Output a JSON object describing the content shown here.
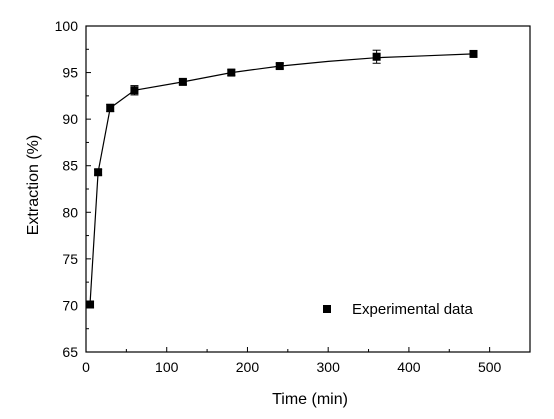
{
  "chart_data": {
    "type": "scatter",
    "title": "",
    "xlabel": "Time (min)",
    "ylabel": "Extraction (%)",
    "xlim": [
      0,
      550
    ],
    "ylim": [
      65,
      100
    ],
    "xticks": [
      0,
      100,
      200,
      300,
      400,
      500
    ],
    "yticks": [
      65,
      70,
      75,
      80,
      85,
      90,
      95,
      100
    ],
    "legend": {
      "placement": "bottom-right",
      "entries": [
        "Experimental data"
      ]
    },
    "grid": false,
    "series": [
      {
        "name": "Experimental data",
        "marker": "square",
        "color": "#000000",
        "x": [
          5,
          15,
          30,
          60,
          120,
          180,
          240,
          360,
          480
        ],
        "y": [
          70.1,
          84.3,
          91.2,
          93.1,
          94.0,
          95.0,
          95.7,
          96.7,
          97.0
        ],
        "error": [
          0.3,
          0.3,
          0.4,
          0.5,
          0.3,
          0.3,
          0.3,
          0.7,
          0.3
        ]
      }
    ],
    "fit_curve": {
      "color": "#000000",
      "x": [
        5,
        15,
        30,
        60,
        120,
        180,
        240,
        300,
        360,
        420,
        480
      ],
      "y": [
        70.1,
        84.3,
        91.2,
        93.1,
        94.0,
        95.0,
        95.7,
        96.2,
        96.6,
        96.8,
        97.0
      ]
    }
  }
}
